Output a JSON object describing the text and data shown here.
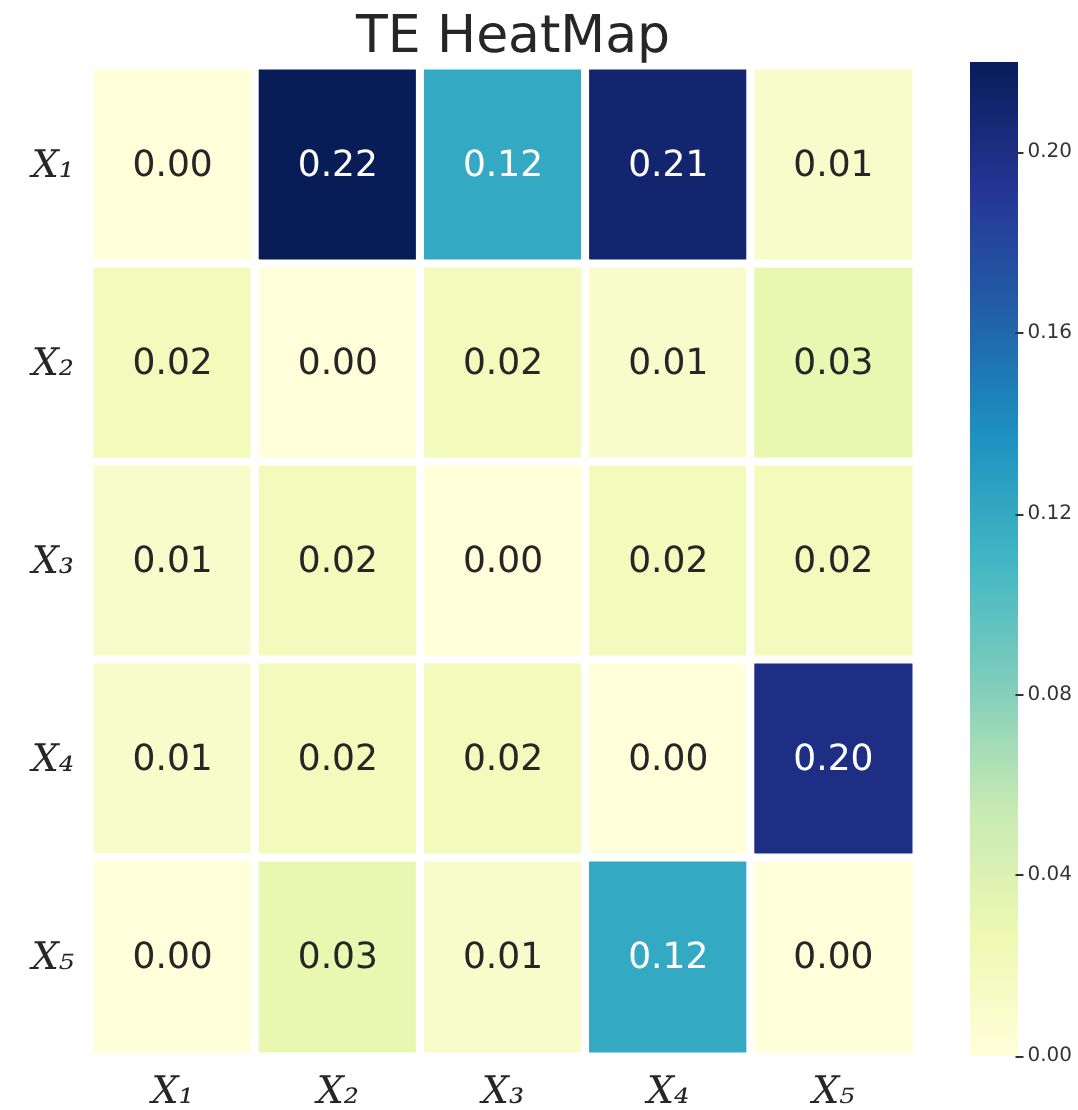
{
  "chart_data": {
    "type": "heatmap",
    "title": "TE HeatMap",
    "categories": [
      "X₁",
      "X₂",
      "X₃",
      "X₄",
      "X₅"
    ],
    "y_categories": [
      "X₁",
      "X₂",
      "X₃",
      "X₄",
      "X₅"
    ],
    "cells": [
      [
        0,
        0.22,
        0.12,
        0.21,
        0.01
      ],
      [
        0.02,
        0,
        0.02,
        0.01,
        0.03
      ],
      [
        0.01,
        0.02,
        0,
        0.02,
        0.02
      ],
      [
        0.01,
        0.02,
        0.02,
        0,
        0.2
      ],
      [
        0,
        0.03,
        0.01,
        0.12,
        0
      ]
    ],
    "cell_labels": [
      [
        "0.00",
        "0.22",
        "0.12",
        "0.21",
        "0.01"
      ],
      [
        "0.02",
        "0.00",
        "0.02",
        "0.01",
        "0.03"
      ],
      [
        "0.01",
        "0.02",
        "0.00",
        "0.02",
        "0.02"
      ],
      [
        "0.01",
        "0.02",
        "0.02",
        "0.00",
        "0.20"
      ],
      [
        "0.00",
        "0.03",
        "0.01",
        "0.12",
        "0.00"
      ]
    ],
    "cticks": [
      "0.00",
      "0.04",
      "0.08",
      "0.12",
      "0.16",
      "0.20"
    ]
  }
}
